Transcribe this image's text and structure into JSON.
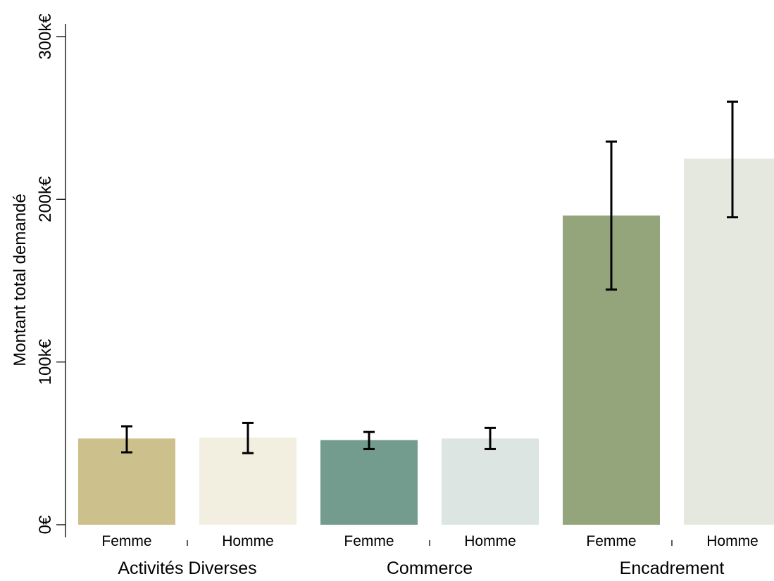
{
  "chart_data": {
    "type": "bar",
    "title": "",
    "ylabel": "Montant total demandé",
    "xlabel": "",
    "ylim": [
      0,
      300
    ],
    "y_ticks": [
      0,
      100,
      200,
      300
    ],
    "y_tick_labels": [
      "0€",
      "100k€",
      "200k€",
      "300k€"
    ],
    "grid": false,
    "groups": [
      "Activités Diverses",
      "Commerce",
      "Encadrement"
    ],
    "sub_categories": [
      "Femme",
      "Homme"
    ],
    "bars": [
      {
        "group": "Activités Diverses",
        "sex": "Femme",
        "value": 53,
        "ci_low": 44.5,
        "ci_high": 60.5,
        "color": "#ccc18d"
      },
      {
        "group": "Activités Diverses",
        "sex": "Homme",
        "value": 53.5,
        "ci_low": 44,
        "ci_high": 62.5,
        "color": "#f2efe0"
      },
      {
        "group": "Commerce",
        "sex": "Femme",
        "value": 52,
        "ci_low": 46.5,
        "ci_high": 57,
        "color": "#739b8e"
      },
      {
        "group": "Commerce",
        "sex": "Homme",
        "value": 53,
        "ci_low": 46.5,
        "ci_high": 59.5,
        "color": "#dce5e2"
      },
      {
        "group": "Encadrement",
        "sex": "Femme",
        "value": 190,
        "ci_low": 144.5,
        "ci_high": 235.5,
        "color": "#94a57c"
      },
      {
        "group": "Encadrement",
        "sex": "Homme",
        "value": 225,
        "ci_low": 189,
        "ci_high": 260,
        "color": "#e5e8df"
      }
    ]
  }
}
